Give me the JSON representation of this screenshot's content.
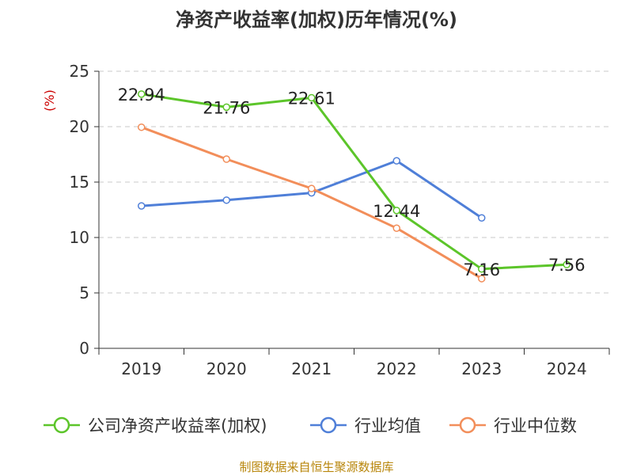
{
  "chart_data": {
    "type": "line",
    "title": "净资产收益率(加权)历年情况(%)",
    "ylabel": "(%)",
    "xlabel": "",
    "categories": [
      "2019",
      "2020",
      "2021",
      "2022",
      "2023",
      "2024"
    ],
    "ylim": [
      0,
      25
    ],
    "yticks": [
      0,
      5,
      10,
      15,
      20,
      25
    ],
    "grid": true,
    "legend_position": "bottom",
    "series": [
      {
        "name": "公司净资产收益率(加权)",
        "color": "#5cc52a",
        "values": [
          22.94,
          21.76,
          22.61,
          12.44,
          7.16,
          7.56
        ],
        "labels": [
          "22.94",
          "21.76",
          "22.61",
          "12.44",
          "7.16",
          "7.56"
        ]
      },
      {
        "name": "行业均值",
        "color": "#4f7fd8",
        "values": [
          12.85,
          13.37,
          14.03,
          16.92,
          11.77,
          null
        ]
      },
      {
        "name": "行业中位数",
        "color": "#f28e5a",
        "values": [
          19.95,
          17.07,
          14.42,
          10.84,
          6.29,
          null
        ]
      }
    ],
    "source": "制图数据来自恒生聚源数据库"
  }
}
